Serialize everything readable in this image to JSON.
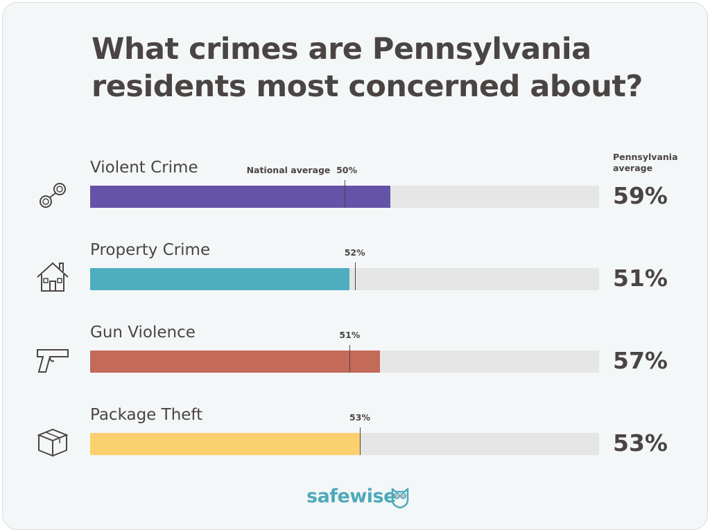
{
  "title": "What crimes are Pennsylvania residents most concerned about?",
  "logo": "safewise",
  "chart_data": {
    "type": "bar",
    "orientation": "horizontal",
    "title": "What crimes are Pennsylvania residents most concerned about?",
    "xlim": [
      0,
      100
    ],
    "grid": false,
    "categories": [
      "Violent Crime",
      "Property Crime",
      "Gun Violence",
      "Package Theft"
    ],
    "icons": [
      "handcuffs-icon",
      "house-icon",
      "handgun-icon",
      "package-icon"
    ],
    "colors": [
      "#6453a8",
      "#4eaebf",
      "#c46a58",
      "#fbd06e"
    ],
    "series": [
      {
        "name": "Pennsylvania average",
        "values": [
          59,
          51,
          57,
          53
        ]
      },
      {
        "name": "National average",
        "values": [
          50,
          52,
          51,
          53
        ]
      }
    ],
    "value_labels": [
      "59%",
      "51%",
      "57%",
      "53%"
    ],
    "national_labels": [
      "50%",
      "52%",
      "51%",
      "53%"
    ],
    "national_caption": "National average",
    "pa_header": [
      "Pennsylvania",
      "average"
    ],
    "track_color": "#e6e6e6"
  }
}
